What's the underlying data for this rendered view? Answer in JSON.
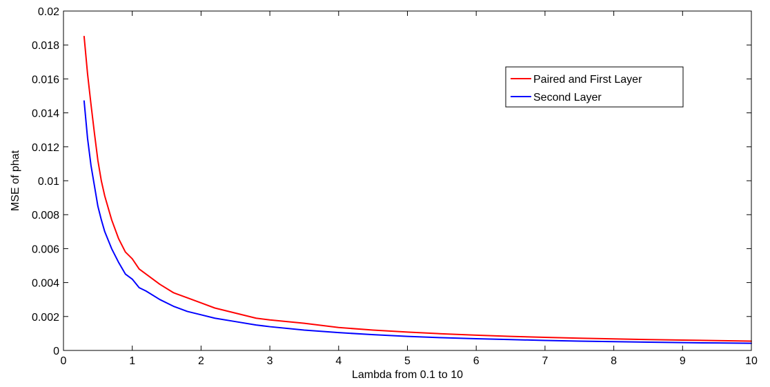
{
  "chart_data": {
    "type": "line",
    "xlabel": "Lambda from 0.1 to 10",
    "ylabel": "MSE of phat",
    "xlim": [
      0,
      10
    ],
    "ylim": [
      0,
      0.02
    ],
    "x_ticks": [
      0,
      1,
      2,
      3,
      4,
      5,
      6,
      7,
      8,
      9,
      10
    ],
    "x_tick_labels": [
      "0",
      "1",
      "2",
      "3",
      "4",
      "5",
      "6",
      "7",
      "8",
      "9",
      "10"
    ],
    "y_ticks": [
      0,
      0.002,
      0.004,
      0.006,
      0.008,
      0.01,
      0.012,
      0.014,
      0.016,
      0.018,
      0.02
    ],
    "y_tick_labels": [
      "0",
      "0.002",
      "0.004",
      "0.006",
      "0.008",
      "0.01",
      "0.012",
      "0.014",
      "0.016",
      "0.018",
      "0.02"
    ],
    "grid": false,
    "legend_position": "top-right",
    "series": [
      {
        "name": "Paired and First Layer",
        "color": "#ff0000",
        "x": [
          0.3,
          0.35,
          0.4,
          0.45,
          0.5,
          0.55,
          0.6,
          0.7,
          0.8,
          0.9,
          1.0,
          1.1,
          1.2,
          1.4,
          1.6,
          1.8,
          2.0,
          2.2,
          2.5,
          2.8,
          3.0,
          3.5,
          4.0,
          4.5,
          5.0,
          5.5,
          6.0,
          6.5,
          7.0,
          7.5,
          8.0,
          8.5,
          9.0,
          9.5,
          10.0
        ],
        "values": [
          0.0185,
          0.0163,
          0.0145,
          0.0128,
          0.0112,
          0.01,
          0.0091,
          0.0077,
          0.0066,
          0.0058,
          0.0054,
          0.0048,
          0.0045,
          0.0039,
          0.0034,
          0.0031,
          0.0028,
          0.0025,
          0.0022,
          0.0019,
          0.0018,
          0.0016,
          0.00135,
          0.0012,
          0.00108,
          0.00098,
          0.0009,
          0.00083,
          0.00077,
          0.00072,
          0.00068,
          0.00064,
          0.00061,
          0.00058,
          0.00055
        ]
      },
      {
        "name": "Second Layer",
        "color": "#0000ff",
        "x": [
          0.3,
          0.35,
          0.4,
          0.45,
          0.5,
          0.55,
          0.6,
          0.7,
          0.8,
          0.9,
          1.0,
          1.1,
          1.2,
          1.4,
          1.6,
          1.8,
          2.0,
          2.2,
          2.5,
          2.8,
          3.0,
          3.5,
          4.0,
          4.5,
          5.0,
          5.5,
          6.0,
          6.5,
          7.0,
          7.5,
          8.0,
          8.5,
          9.0,
          9.5,
          10.0
        ],
        "values": [
          0.0147,
          0.0125,
          0.0109,
          0.0097,
          0.0085,
          0.0077,
          0.007,
          0.006,
          0.0052,
          0.0045,
          0.0042,
          0.0037,
          0.0035,
          0.003,
          0.0026,
          0.0023,
          0.0021,
          0.0019,
          0.0017,
          0.0015,
          0.0014,
          0.0012,
          0.00105,
          0.00093,
          0.00083,
          0.00075,
          0.00069,
          0.00064,
          0.00059,
          0.00055,
          0.00052,
          0.00049,
          0.00046,
          0.00044,
          0.00042
        ]
      }
    ]
  }
}
